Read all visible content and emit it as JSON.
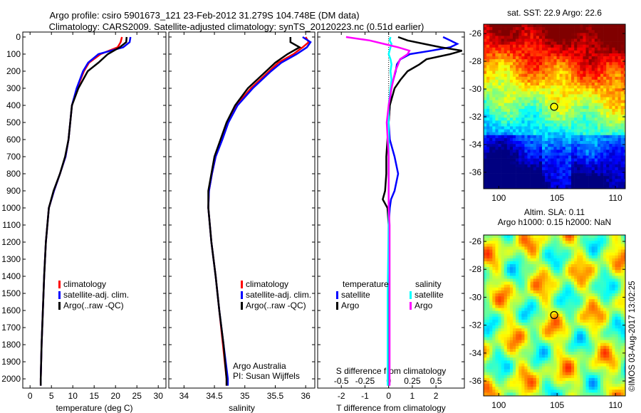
{
  "title": {
    "line1": "Argo profile: csiro 5901673_121 23-Feb-2012 31.279S 104.748E (DM data)",
    "line2": "Climatology: CARS2009. Satellite-adjusted climatology: synTS_20120223.nc (0.51d earlier)"
  },
  "credit": "©IMOS 03-Aug-2017 13:02:25",
  "colors": {
    "climatology": "#ff0000",
    "satellite": "#0000ff",
    "argo": "#000000",
    "sal_satellite": "#00ffff",
    "sal_argo": "#ff00ff"
  },
  "chart_data": [
    {
      "type": "line",
      "name": "temperature-profile",
      "xlabel": "temperature (deg C)",
      "ylabel": "",
      "xlim": [
        -1.7,
        31.8
      ],
      "ylim": [
        2054,
        -29
      ],
      "xticks": [
        0,
        5,
        10,
        15,
        20,
        25,
        30
      ],
      "yticks": [
        0,
        100,
        200,
        300,
        400,
        500,
        600,
        700,
        800,
        900,
        1000,
        1100,
        1200,
        1300,
        1400,
        1500,
        1600,
        1700,
        1800,
        1900,
        2000
      ],
      "legend": [
        "climatology",
        "satellite-adj. clim.",
        "Argo(..raw -QC)"
      ],
      "legend_placement": "lower-center",
      "depth": [
        0,
        30,
        60,
        100,
        150,
        200,
        300,
        400,
        500,
        600,
        700,
        800,
        900,
        1000,
        1200,
        1400,
        1600,
        1800,
        2000,
        2040
      ],
      "series": [
        {
          "name": "climatology",
          "values": [
            21.5,
            21.2,
            20.5,
            16.5,
            13.8,
            12.6,
            11.0,
            9.8,
            9.4,
            9.0,
            8.3,
            7.0,
            5.6,
            4.4,
            3.7,
            3.3,
            3.0,
            2.7,
            2.5,
            2.5
          ]
        },
        {
          "name": "satellite-adj. clim.",
          "values": [
            23.5,
            23.3,
            21.8,
            16.0,
            13.6,
            12.4,
            10.9,
            9.8,
            9.4,
            9.0,
            8.3,
            7.0,
            5.6,
            4.4,
            3.7,
            3.3,
            3.0,
            2.7,
            2.5,
            2.5
          ]
        },
        {
          "name": "Argo(..raw -QC)",
          "values": [
            22.6,
            22.5,
            21.0,
            18.2,
            16.0,
            13.5,
            11.3,
            9.8,
            9.4,
            9.0,
            8.2,
            7.0,
            5.5,
            4.4,
            3.7,
            3.3,
            3.0,
            2.7,
            2.5,
            2.5
          ]
        }
      ]
    },
    {
      "type": "line",
      "name": "salinity-profile",
      "xlabel": "salinity",
      "xlim": [
        33.75,
        36.15
      ],
      "ylim": [
        2054,
        -29
      ],
      "xticks": [
        34,
        34.5,
        35,
        35.5,
        36
      ],
      "legend": [
        "climatology",
        "satellite-adj. clim.",
        "Argo(..raw -QC)"
      ],
      "legend_placement": "lower-right",
      "annotation": [
        "Argo Australia",
        "PI: Susan Wijffels"
      ],
      "depth": [
        0,
        30,
        60,
        100,
        150,
        200,
        300,
        400,
        500,
        600,
        700,
        800,
        900,
        1000,
        1200,
        1400,
        1600,
        1800,
        2000,
        2040
      ],
      "series": [
        {
          "name": "climatology",
          "values": [
            36.0,
            36.05,
            35.95,
            35.8,
            35.55,
            35.4,
            35.1,
            34.86,
            34.72,
            34.62,
            34.52,
            34.46,
            34.41,
            34.4,
            34.45,
            34.52,
            34.58,
            34.64,
            34.7,
            34.7
          ]
        },
        {
          "name": "satellite-adj. clim.",
          "values": [
            35.95,
            36.08,
            36.02,
            35.85,
            35.6,
            35.43,
            35.13,
            34.88,
            34.73,
            34.63,
            34.52,
            34.46,
            34.41,
            34.4,
            34.45,
            34.52,
            34.58,
            34.65,
            34.72,
            34.72
          ]
        },
        {
          "name": "Argo(..raw -QC)",
          "values": [
            35.75,
            35.75,
            35.9,
            35.7,
            35.5,
            35.35,
            35.05,
            34.84,
            34.7,
            34.6,
            34.5,
            34.45,
            34.4,
            34.4,
            34.45,
            34.52,
            34.58,
            34.65,
            34.7,
            34.7
          ]
        }
      ]
    },
    {
      "type": "line",
      "name": "difference-profile",
      "xlabel": "T difference from climatology",
      "x2label": "S difference from climatology",
      "xlim": [
        -3,
        3.2
      ],
      "x2lim": [
        -0.75,
        0.8
      ],
      "ylim": [
        2054,
        -29
      ],
      "xticks": [
        -2,
        -1,
        0,
        1,
        2
      ],
      "x2ticks": [
        -0.5,
        -0.25,
        0,
        0.25,
        0.5
      ],
      "legend": {
        "temperature_title": "temperature",
        "salinity_title": "salinity",
        "entries": [
          "satellite",
          "Argo",
          "satellite",
          "Argo"
        ]
      },
      "legend_placement": "lower",
      "depth": [
        0,
        20,
        40,
        60,
        80,
        100,
        130,
        160,
        200,
        250,
        300,
        400,
        500,
        600,
        700,
        800,
        900,
        950,
        1000,
        1100,
        1500,
        2040
      ],
      "series": [
        {
          "name": "T satellite",
          "units": "T",
          "values": [
            2.3,
            2.6,
            2.9,
            2.6,
            1.8,
            0.9,
            0.5,
            0.35,
            0.3,
            0.2,
            0.1,
            0.05,
            0.0,
            0.05,
            0.25,
            0.4,
            0.25,
            0.1,
            0.05,
            0.0,
            0.0,
            0.0
          ]
        },
        {
          "name": "T Argo",
          "units": "T",
          "values": [
            0.4,
            0.8,
            1.5,
            2.2,
            3.1,
            2.6,
            1.6,
            1.3,
            0.8,
            0.5,
            0.25,
            0.05,
            0.0,
            -0.05,
            -0.1,
            -0.1,
            -0.15,
            -0.25,
            -0.05,
            0.0,
            0.0,
            0.0
          ]
        },
        {
          "name": "S satellite",
          "units": "S",
          "values": [
            0.02,
            0.01,
            0.03,
            0.02,
            0.01,
            0.0,
            0.02,
            0.03,
            0.02,
            0.03,
            0.02,
            0.0,
            0.0,
            0.0,
            0.0,
            0.0,
            0.0,
            0.0,
            0.0,
            0.0,
            -0.01,
            -0.01
          ]
        },
        {
          "name": "S Argo",
          "units": "S",
          "values": [
            -0.45,
            -0.2,
            -0.05,
            0.1,
            0.22,
            0.2,
            0.12,
            0.1,
            0.07,
            0.05,
            0.03,
            0.0,
            -0.02,
            -0.01,
            0.0,
            0.0,
            0.0,
            0.0,
            0.0,
            0.01,
            0.01,
            0.01
          ]
        }
      ]
    },
    {
      "type": "heatmap",
      "name": "sst-map",
      "title": "sat. SST: 22.9 Argo: 22.6",
      "xlim": [
        98.7,
        110.85
      ],
      "ylim": [
        -37.18,
        -25.33
      ],
      "xticks": [
        100,
        105,
        110
      ],
      "yticks": [
        -26,
        -28,
        -30,
        -32,
        -34,
        -36
      ],
      "marker": {
        "lon": 104.748,
        "lat": -31.279
      }
    },
    {
      "type": "heatmap",
      "name": "sla-map",
      "title": [
        "Altim. SLA: 0.11",
        "Argo h1000: 0.15 h2000: NaN"
      ],
      "xlim": [
        98.7,
        110.85
      ],
      "ylim": [
        -37.07,
        -25.54
      ],
      "xticks": [
        100,
        105,
        110
      ],
      "yticks": [
        -26,
        -28,
        -30,
        -32,
        -34,
        -36
      ],
      "marker": {
        "lon": 104.748,
        "lat": -31.279
      }
    }
  ]
}
